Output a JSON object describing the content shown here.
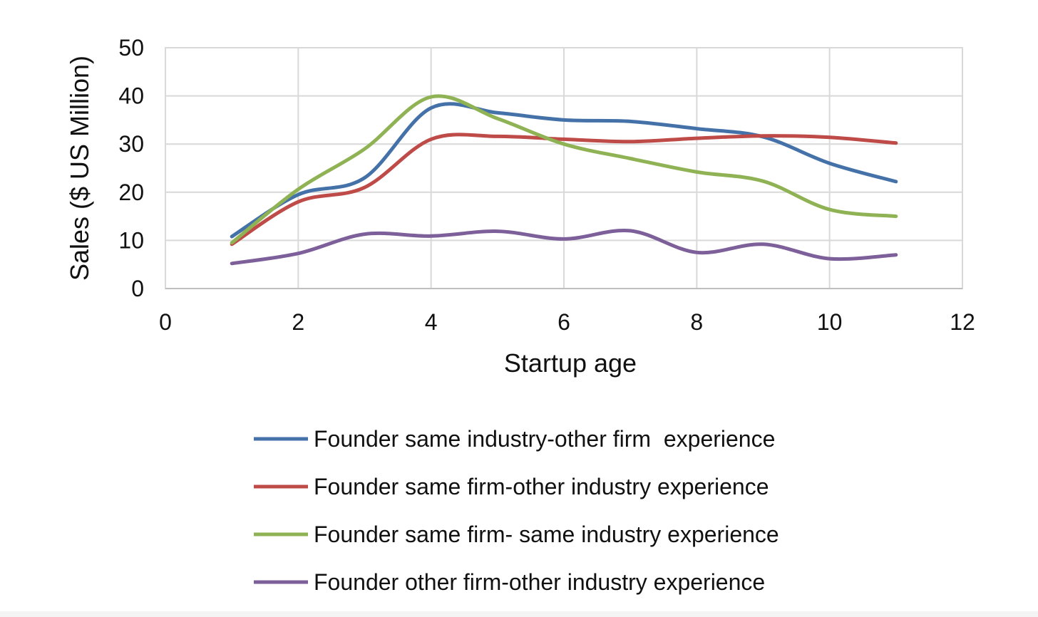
{
  "chart_data": {
    "type": "line",
    "title": "",
    "xlabel": "Startup age",
    "ylabel": "Sales ($ US Million)",
    "xlim": [
      0,
      12
    ],
    "ylim": [
      0,
      50
    ],
    "xticks": [
      "0",
      "2",
      "4",
      "6",
      "8",
      "10",
      "12"
    ],
    "yticks": [
      "0",
      "10",
      "20",
      "30",
      "40",
      "50"
    ],
    "grid": true,
    "smooth": true,
    "legend_position": "bottom",
    "x": [
      1,
      2,
      3,
      4,
      5,
      6,
      7,
      8,
      9,
      10,
      11
    ],
    "series": [
      {
        "name": "Founder same industry-other firm  experience",
        "color": "#4472A8",
        "values": [
          10.8,
          19.5,
          23,
          37.5,
          36.5,
          35,
          34.7,
          33.2,
          31.5,
          26,
          22.2
        ]
      },
      {
        "name": "Founder same firm-other industry experience",
        "color": "#BE4B48",
        "values": [
          9.2,
          18,
          21,
          31,
          31.6,
          31,
          30.5,
          31.2,
          31.7,
          31.4,
          30.2
        ]
      },
      {
        "name": "Founder same firm- same industry experience",
        "color": "#8FB354",
        "values": [
          9.5,
          20.6,
          29,
          39.8,
          35.3,
          30,
          27,
          24.2,
          22.3,
          16.4,
          15
        ]
      },
      {
        "name": "Founder other firm-other industry experience",
        "color": "#7D5F9A",
        "values": [
          5.2,
          7.3,
          11.3,
          10.9,
          11.9,
          10.3,
          12,
          7.5,
          9.2,
          6.2,
          7
        ]
      }
    ]
  }
}
